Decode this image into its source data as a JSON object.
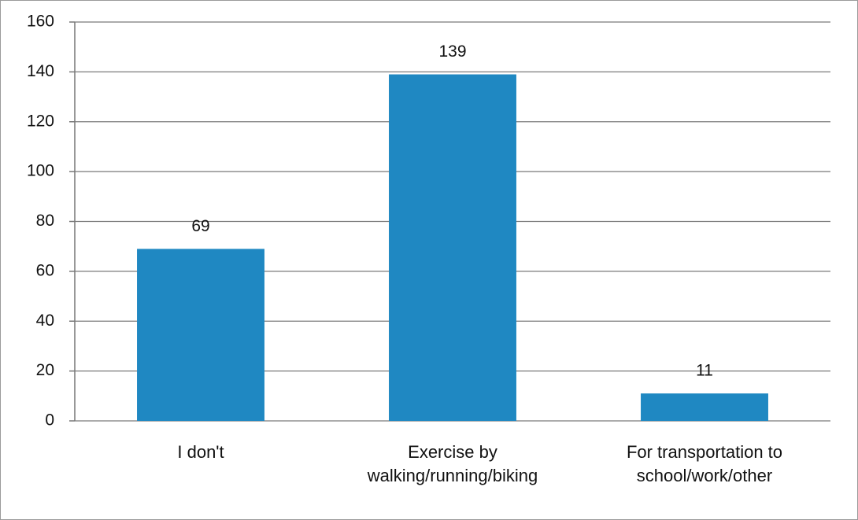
{
  "chart_data": {
    "type": "bar",
    "categories": [
      "I don't",
      "Exercise by walking/running/biking",
      "For transportation to school/work/other"
    ],
    "values": [
      69,
      139,
      11
    ],
    "color": "#1f88c2",
    "ylim": [
      0,
      160
    ],
    "yticks": [
      0,
      20,
      40,
      60,
      80,
      100,
      120,
      140,
      160
    ],
    "grid": true
  }
}
